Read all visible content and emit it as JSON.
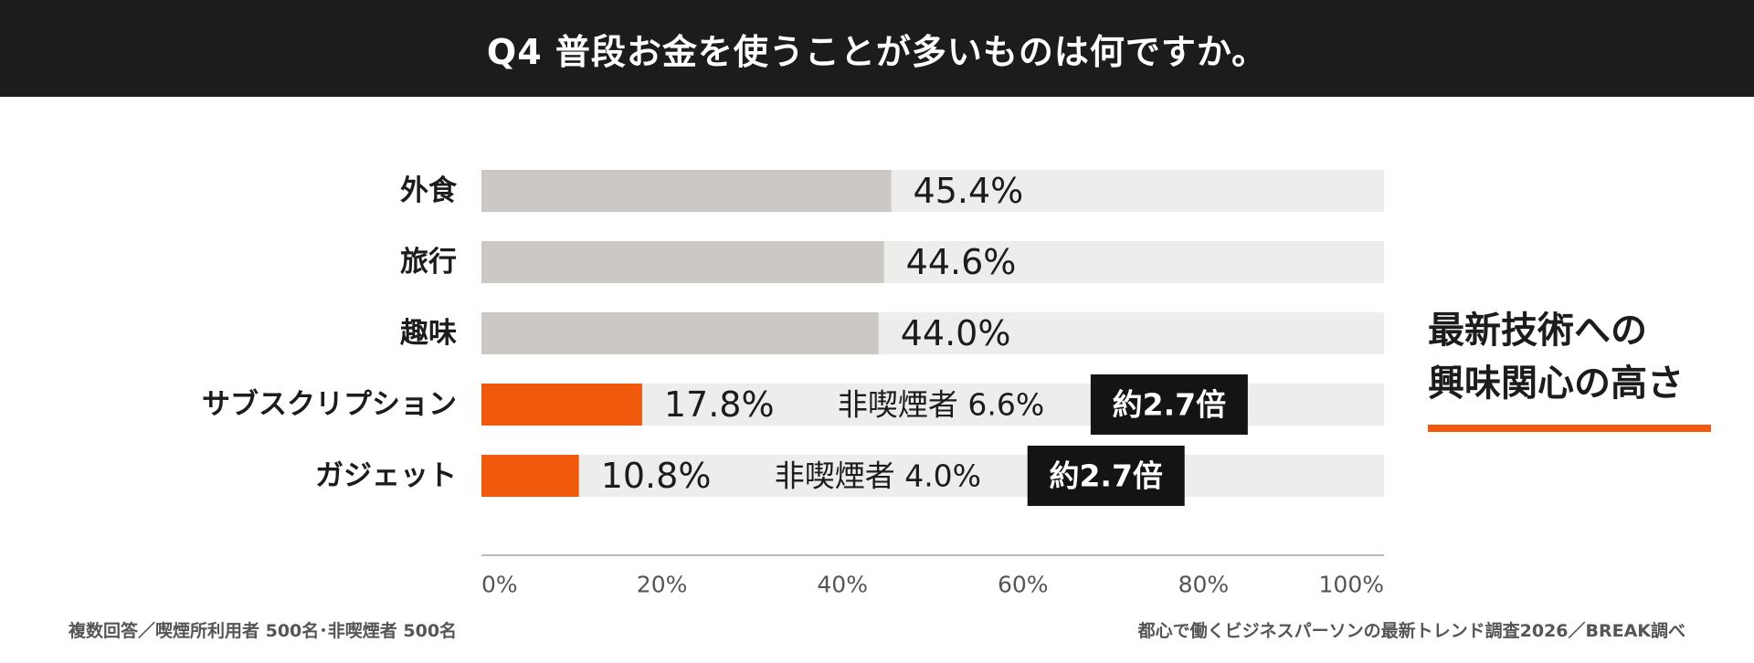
{
  "header": {
    "title": "Q4  普段お金を使うことが多いものは何ですか。"
  },
  "colors": {
    "header_bg": "#1c1c1c",
    "track": "#ededeb",
    "bar_default": "#cbc8c5",
    "bar_highlight": "#f15a0c",
    "badge_bg": "#141414",
    "text": "#1c1c1c",
    "axis": "#bbbbbb",
    "tick_text": "#555555"
  },
  "chart_data": {
    "type": "bar",
    "orientation": "horizontal",
    "categories": [
      "外食",
      "旅行",
      "趣味",
      "サブスクリプション",
      "ガジェット"
    ],
    "values": [
      45.4,
      44.6,
      44.0,
      17.8,
      10.8
    ],
    "value_labels": [
      "45.4%",
      "44.6%",
      "44.0%",
      "17.8%",
      "10.8%"
    ],
    "highlighted": [
      false,
      false,
      false,
      true,
      true
    ],
    "comparisons": [
      null,
      null,
      null,
      {
        "label": "非喫煙者 6.6%",
        "value": 6.6,
        "badge": "約2.7倍"
      },
      {
        "label": "非喫煙者 4.0%",
        "value": 4.0,
        "badge": "約2.7倍"
      }
    ],
    "xlim": [
      0,
      100
    ],
    "xticks": [
      "0%",
      "20%",
      "40%",
      "60%",
      "80%",
      "100%"
    ],
    "grid": false
  },
  "callout": {
    "lines": [
      "最新技術への",
      "興味関心の高さ"
    ]
  },
  "footnotes": {
    "left": "複数回答／喫煙所利用者 500名･非喫煙者 500名",
    "right": "都心で働くビジネスパーソンの最新トレンド調査2026／BREAK調べ"
  }
}
